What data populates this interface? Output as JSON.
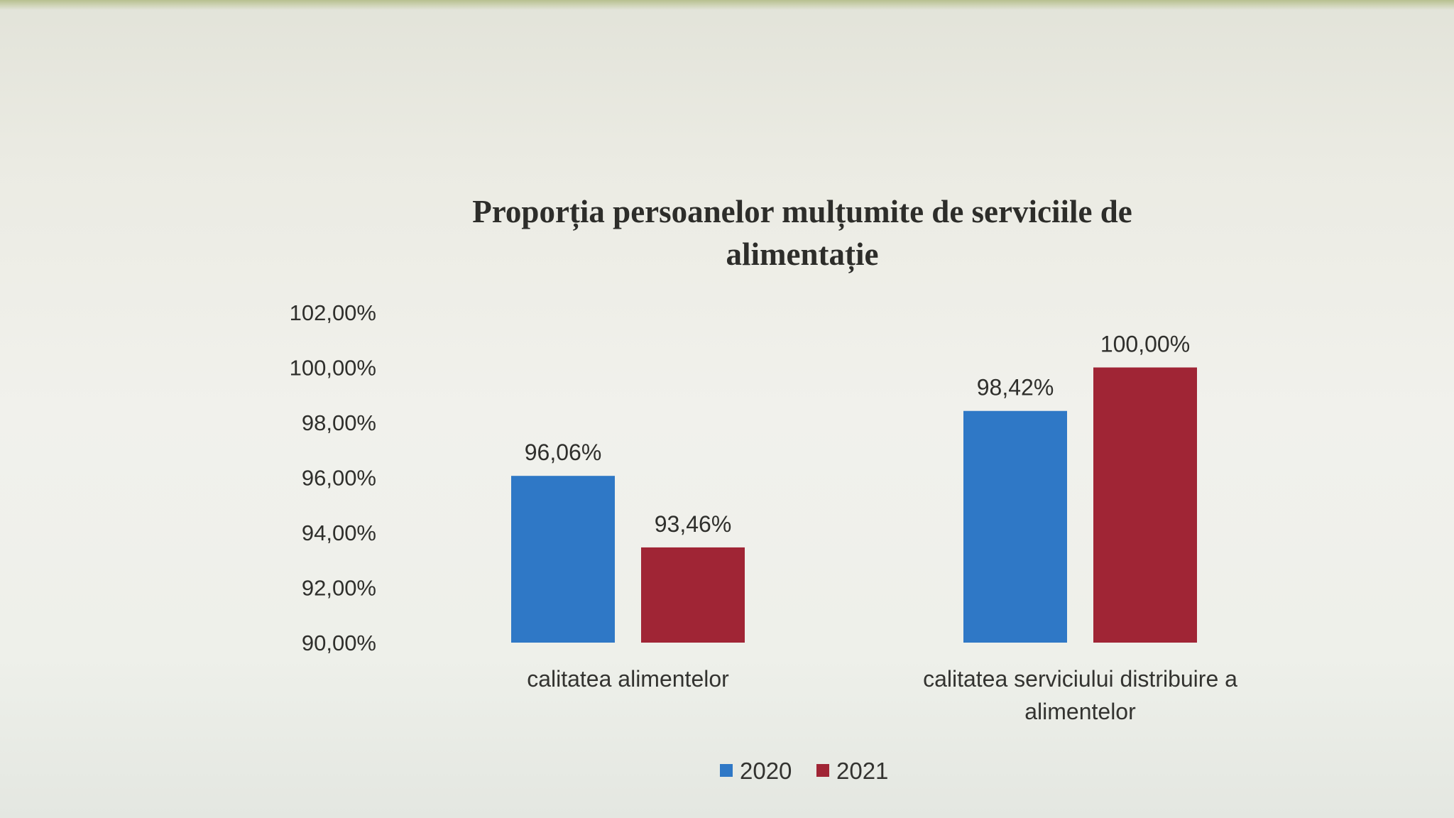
{
  "chart_data": {
    "type": "bar",
    "title_line1": "Proporția persoanelor mulțumite de serviciile de",
    "title_line2": "alimentație",
    "categories": [
      [
        "calitatea alimentelor"
      ],
      [
        "calitatea serviciului distribuire a",
        "alimentelor"
      ]
    ],
    "series": [
      {
        "name": "2020",
        "color": "#2f78c6",
        "values": [
          96.06,
          98.42
        ],
        "labels": [
          "96,06%",
          "98,42%"
        ]
      },
      {
        "name": "2021",
        "color": "#a02535",
        "values": [
          93.46,
          100.0
        ],
        "labels": [
          "93,46%",
          "100,00%"
        ]
      }
    ],
    "ylim": [
      90,
      102
    ],
    "y_ticks": [
      90,
      92,
      94,
      96,
      98,
      100,
      102
    ],
    "y_tick_labels": [
      "90,00%",
      "92,00%",
      "94,00%",
      "96,00%",
      "98,00%",
      "100,00%",
      "102,00%"
    ],
    "grid": false,
    "legend_position": "bottom"
  }
}
